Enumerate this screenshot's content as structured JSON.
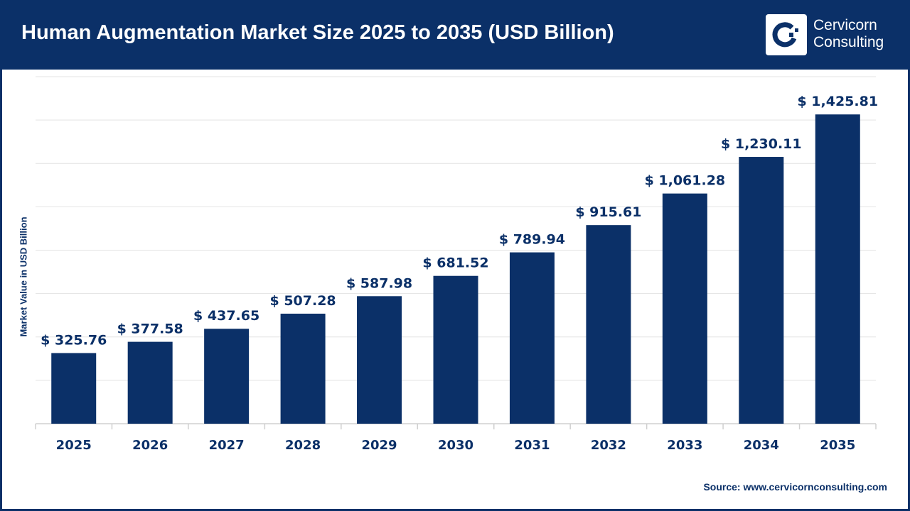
{
  "header": {
    "title": "Human Augmentation Market Size 2025 to 2035 (USD Billion)",
    "logo_text_line1": "Cervicorn",
    "logo_text_line2": "Consulting"
  },
  "source": "Source: www.cervicornconsulting.com",
  "colors": {
    "bar": "#0b3068",
    "header": "#0b3068",
    "grid": "#e3e3e3"
  },
  "chart_data": {
    "type": "bar",
    "title": "Human Augmentation Market Size 2025 to 2035 (USD Billion)",
    "xlabel": "",
    "ylabel": "Market Value in USD Billion",
    "categories": [
      "2025",
      "2026",
      "2027",
      "2028",
      "2029",
      "2030",
      "2031",
      "2032",
      "2033",
      "2034",
      "2035"
    ],
    "values": [
      325.76,
      377.58,
      437.65,
      507.28,
      587.98,
      681.52,
      789.94,
      915.61,
      1061.28,
      1230.11,
      1425.81
    ],
    "data_labels": [
      "$ 325.76",
      "$ 377.58",
      "$ 437.65",
      "$ 507.28",
      "$ 587.98",
      "$ 681.52",
      "$ 789.94",
      "$ 915.61",
      "$ 1,061.28",
      "$ 1,230.11",
      "$ 1,425.81"
    ],
    "ylim": [
      0,
      1600
    ],
    "grid": true,
    "legend": "none"
  }
}
